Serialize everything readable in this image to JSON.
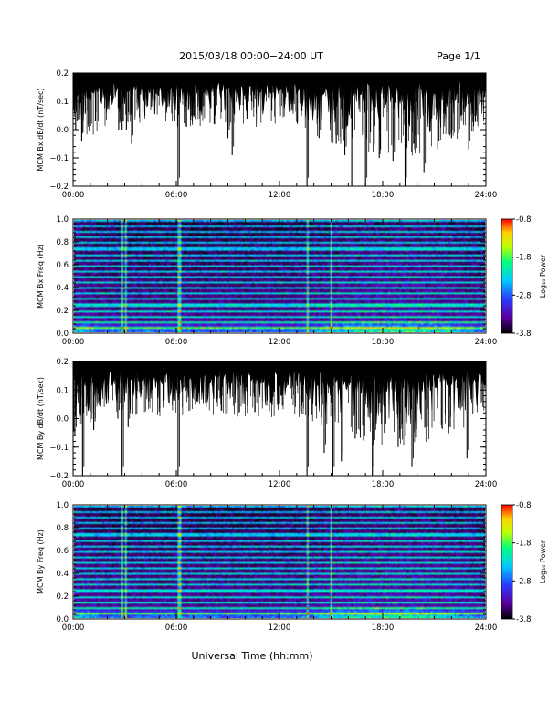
{
  "header": {
    "title": "2015/03/18  00:00−24:00 UT",
    "page": "Page 1/1"
  },
  "xlabel": "Universal Time (hh:mm)",
  "xticks": [
    "00:00",
    "06:00",
    "12:00",
    "18:00",
    "24:00"
  ],
  "colors": {
    "trace": "#000000",
    "spec_background": "#20003a",
    "colormap": [
      "#000000",
      "#5a00a0",
      "#2a3cff",
      "#00c8ff",
      "#00ff80",
      "#c0ff00",
      "#ffd000",
      "#ff0000"
    ]
  },
  "colorbar": {
    "label": "Log₁₀ Power",
    "ticks": [
      "-0.8",
      "-1.8",
      "-2.8",
      "-3.8"
    ],
    "range": [
      -3.8,
      -0.8
    ]
  },
  "chart_data": [
    {
      "type": "line",
      "id": "bx-dbdt",
      "ylabel": "MCM Bx dB/dt (nT/sec)",
      "ylim": [
        -0.2,
        0.2
      ],
      "yticks": [
        "0.2",
        "0.1",
        "0.0",
        "−0.1",
        "−0.2"
      ],
      "xlim_hours": [
        0,
        24
      ],
      "baseline": 0.2,
      "dips": [
        {
          "t": 0.15,
          "v": 0.0
        },
        {
          "t": 0.5,
          "v": -0.04
        },
        {
          "t": 1.3,
          "v": 0.03
        },
        {
          "t": 2.65,
          "v": 0.0
        },
        {
          "t": 2.85,
          "v": 0.0
        },
        {
          "t": 3.1,
          "v": 0.0
        },
        {
          "t": 3.4,
          "v": -0.05
        },
        {
          "t": 6.1,
          "v": -0.2
        },
        {
          "t": 7.0,
          "v": 0.05
        },
        {
          "t": 8.2,
          "v": 0.02
        },
        {
          "t": 9.0,
          "v": -0.03
        },
        {
          "t": 9.25,
          "v": -0.09
        },
        {
          "t": 10.5,
          "v": 0.08
        },
        {
          "t": 13.6,
          "v": -0.2
        },
        {
          "t": 14.3,
          "v": -0.03
        },
        {
          "t": 15.3,
          "v": -0.05
        },
        {
          "t": 15.8,
          "v": -0.09
        },
        {
          "t": 16.2,
          "v": -0.2
        },
        {
          "t": 17.0,
          "v": -0.2
        },
        {
          "t": 17.8,
          "v": -0.1
        },
        {
          "t": 18.6,
          "v": -0.11
        },
        {
          "t": 19.3,
          "v": -0.2
        },
        {
          "t": 19.8,
          "v": -0.05
        },
        {
          "t": 20.4,
          "v": -0.15
        },
        {
          "t": 21.2,
          "v": -0.07
        },
        {
          "t": 22.0,
          "v": -0.03
        },
        {
          "t": 23.0,
          "v": -0.07
        }
      ]
    },
    {
      "type": "heatmap",
      "id": "bx-spec",
      "ylabel": "MCM Bx Freq (Hz)",
      "ylim": [
        0.0,
        1.0
      ],
      "yticks": [
        "1.0",
        "0.8",
        "0.6",
        "0.4",
        "0.2",
        "0.0"
      ],
      "xlim_hours": [
        0,
        24
      ],
      "value_range": [
        -3.8,
        -0.8
      ],
      "harmonic_lines_hz": [
        0.05,
        0.1,
        0.15,
        0.2,
        0.25,
        0.3,
        0.35,
        0.4,
        0.45,
        0.5,
        0.55,
        0.6,
        0.65,
        0.7,
        0.75,
        0.8,
        0.85,
        0.9,
        0.95,
        1.0
      ],
      "vertical_events_hours": [
        2.75,
        3.0,
        6.1,
        13.6,
        15.0
      ]
    },
    {
      "type": "line",
      "id": "by-dbdt",
      "ylabel": "MCM By dB/dt (nT/sec)",
      "ylim": [
        -0.2,
        0.2
      ],
      "yticks": [
        "0.2",
        "0.1",
        "0.0",
        "−0.1",
        "−0.2"
      ],
      "xlim_hours": [
        0,
        24
      ],
      "baseline": 0.2,
      "dips": [
        {
          "t": 0.1,
          "v": -0.06
        },
        {
          "t": 0.35,
          "v": -0.02
        },
        {
          "t": 0.55,
          "v": -0.2
        },
        {
          "t": 1.2,
          "v": -0.04
        },
        {
          "t": 2.6,
          "v": 0.0
        },
        {
          "t": 2.85,
          "v": -0.2
        },
        {
          "t": 3.2,
          "v": -0.03
        },
        {
          "t": 6.1,
          "v": -0.2
        },
        {
          "t": 7.2,
          "v": 0.06
        },
        {
          "t": 8.4,
          "v": 0.07
        },
        {
          "t": 12.0,
          "v": 0.05
        },
        {
          "t": 13.6,
          "v": -0.2
        },
        {
          "t": 14.6,
          "v": -0.12
        },
        {
          "t": 15.1,
          "v": -0.2
        },
        {
          "t": 15.6,
          "v": -0.15
        },
        {
          "t": 16.4,
          "v": -0.07
        },
        {
          "t": 17.4,
          "v": -0.2
        },
        {
          "t": 18.1,
          "v": -0.05
        },
        {
          "t": 18.9,
          "v": -0.1
        },
        {
          "t": 19.7,
          "v": -0.17
        },
        {
          "t": 20.5,
          "v": -0.03
        },
        {
          "t": 21.8,
          "v": -0.06
        },
        {
          "t": 22.9,
          "v": -0.14
        }
      ]
    },
    {
      "type": "heatmap",
      "id": "by-spec",
      "ylabel": "MCM By Freq (Hz)",
      "ylim": [
        0.0,
        1.0
      ],
      "yticks": [
        "1.0",
        "0.8",
        "0.6",
        "0.4",
        "0.2",
        "0.0"
      ],
      "xlim_hours": [
        0,
        24
      ],
      "value_range": [
        -3.8,
        -0.8
      ],
      "harmonic_lines_hz": [
        0.05,
        0.1,
        0.15,
        0.2,
        0.25,
        0.3,
        0.35,
        0.4,
        0.45,
        0.5,
        0.55,
        0.6,
        0.65,
        0.7,
        0.75,
        0.8,
        0.85,
        0.9,
        0.95,
        1.0
      ],
      "vertical_events_hours": [
        2.75,
        3.0,
        6.1,
        13.6,
        15.0
      ]
    }
  ]
}
